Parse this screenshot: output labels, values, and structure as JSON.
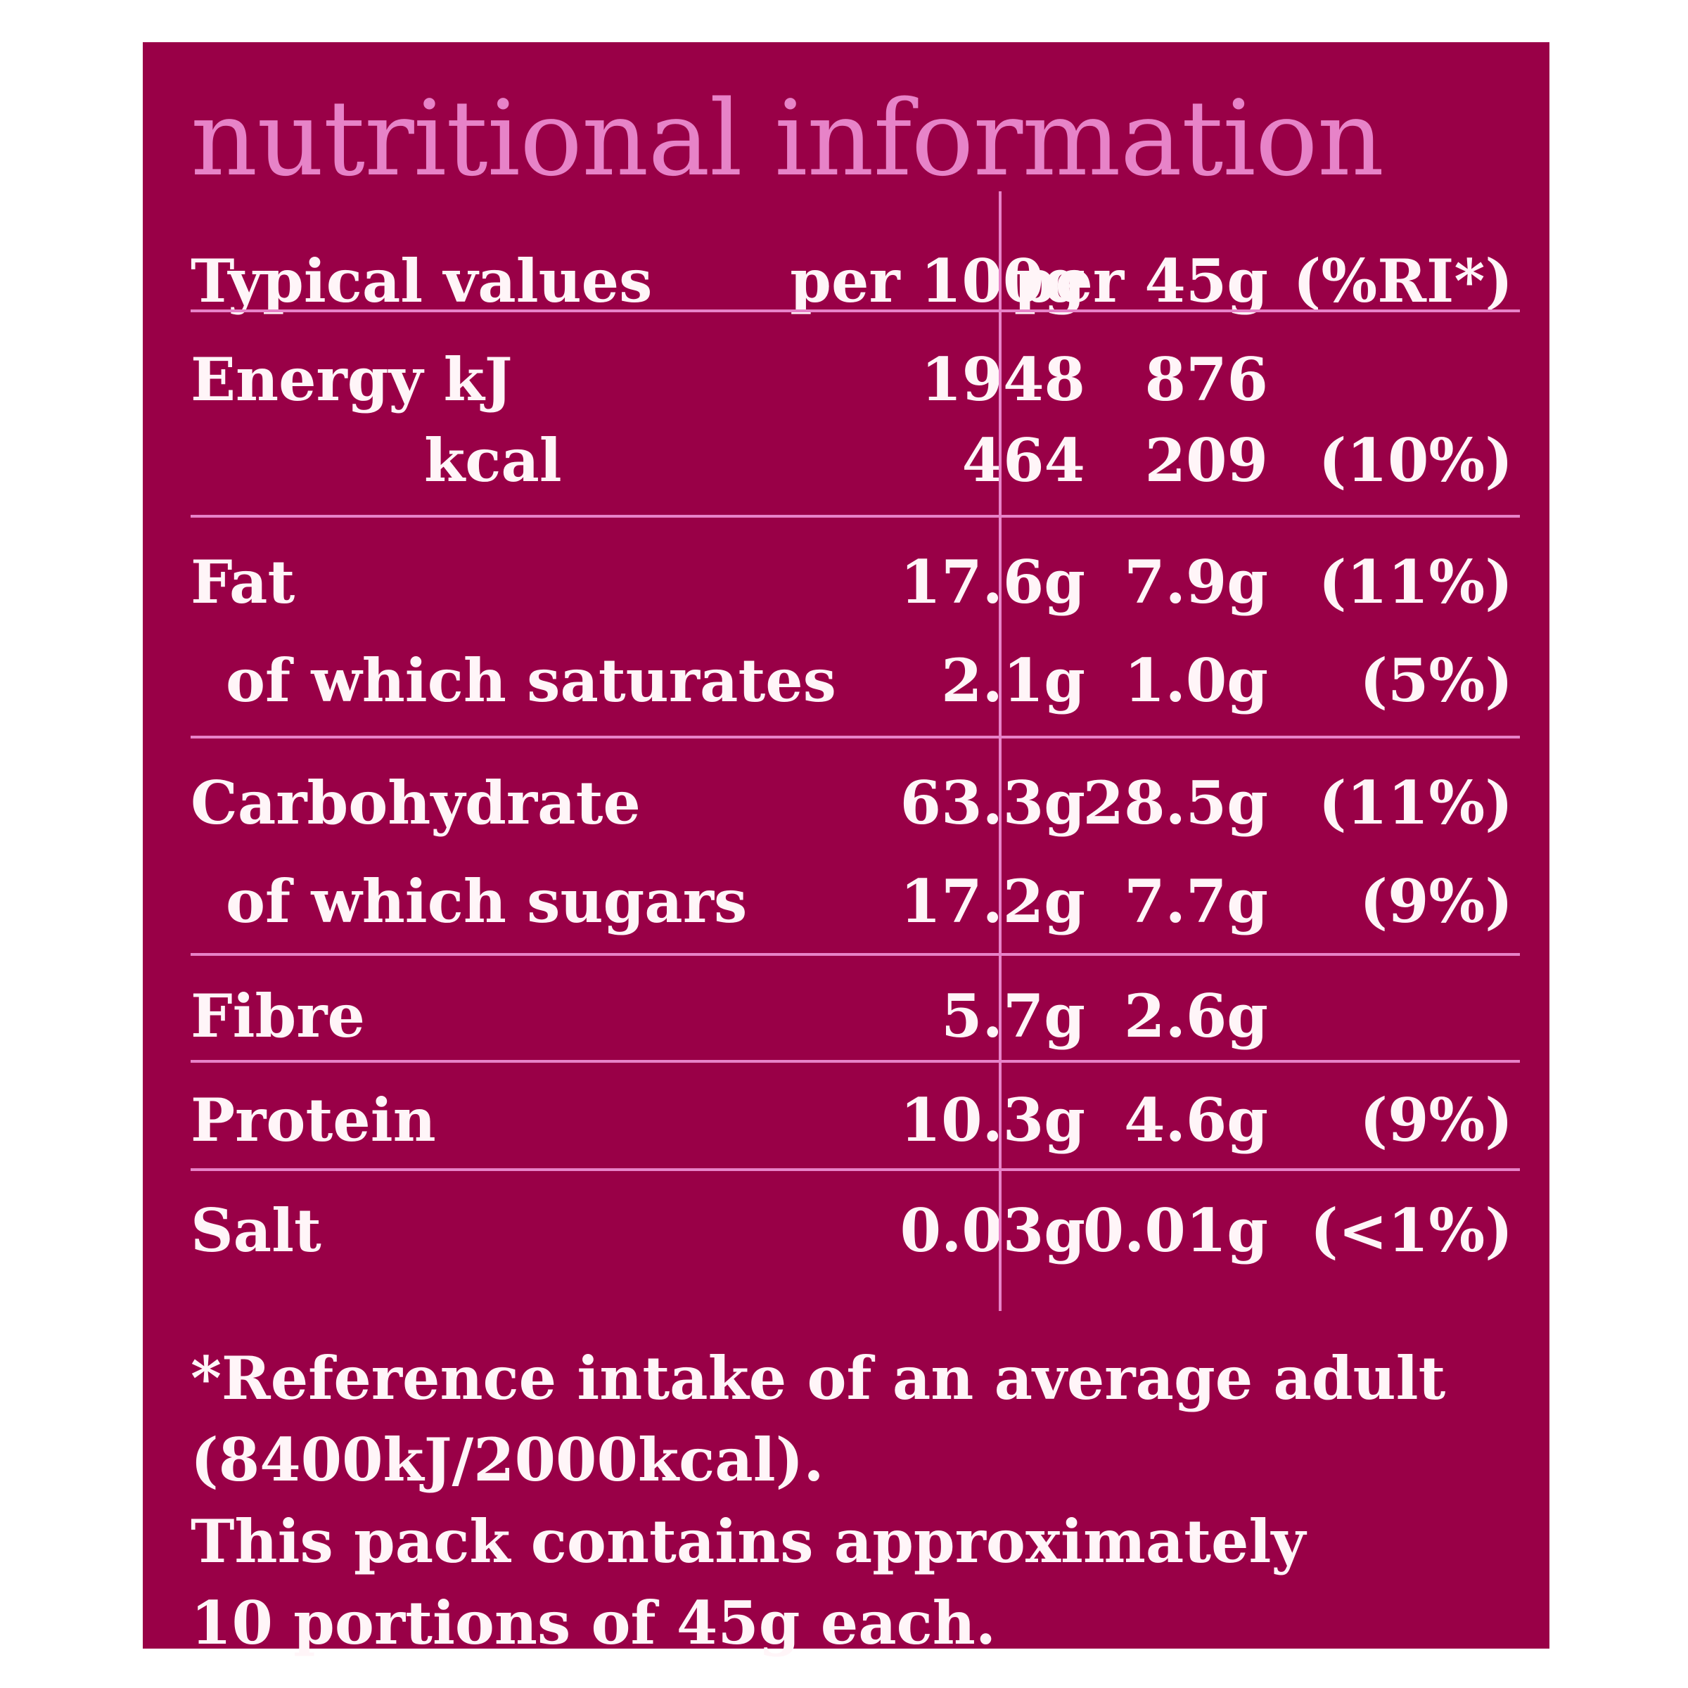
{
  "title": "nutritional information",
  "header": {
    "label": "Typical values",
    "per100": "per 100g",
    "per45": "per 45g",
    "ri": "(%RI*)"
  },
  "rows": [
    {
      "name": "Energy kJ",
      "per100": "1948",
      "per45": "876",
      "ri": ""
    },
    {
      "name": "kcal",
      "per100": "464",
      "per45": "209",
      "ri": "(10%)"
    },
    {
      "name": "Fat",
      "per100": "17.6g",
      "per45": "7.9g",
      "ri": "(11%)"
    },
    {
      "name": "of which saturates",
      "per100": "2.1g",
      "per45": "1.0g",
      "ri": "(5%)"
    },
    {
      "name": "Carbohydrate",
      "per100": "63.3g",
      "per45": "28.5g",
      "ri": "(11%)"
    },
    {
      "name": "of which sugars",
      "per100": "17.2g",
      "per45": "7.7g",
      "ri": "(9%)"
    },
    {
      "name": "Fibre",
      "per100": "5.7g",
      "per45": "2.6g",
      "ri": ""
    },
    {
      "name": "Protein",
      "per100": "10.3g",
      "per45": "4.6g",
      "ri": "(9%)"
    },
    {
      "name": "Salt",
      "per100": "0.03g",
      "per45": "0.01g",
      "ri": "(<1%)"
    }
  ],
  "footnote": [
    "*Reference intake of an average adult",
    "(8400kJ/2000kcal).",
    "This pack contains approximately",
    "10 portions of 45g each."
  ],
  "colors": {
    "background": "#990047",
    "accent": "#e783c8",
    "text": "#fff5f8"
  }
}
